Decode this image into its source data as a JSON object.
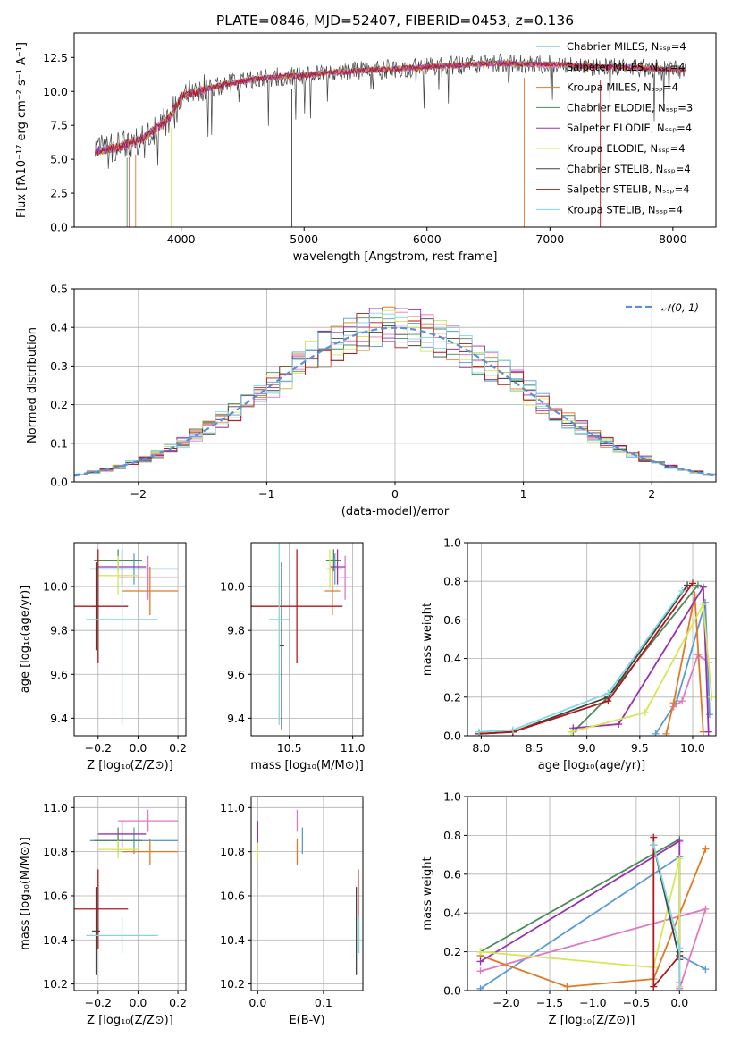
{
  "chart_data": [
    {
      "type": "line",
      "title": "PLATE=0846, MJD=52407, FIBERID=0453, z=0.136",
      "xlabel": "wavelength [Angstrom, rest frame]",
      "ylabel": "Flux [fλ10⁻¹⁷ erg cm⁻² s⁻¹ A⁻¹]",
      "xlim": [
        3130,
        8350
      ],
      "ylim": [
        0,
        14.3
      ],
      "xticks": [
        "4000",
        "5000",
        "6000",
        "7000",
        "8000"
      ],
      "yticks": [
        "0.0",
        "2.5",
        "5.0",
        "7.5",
        "10.0",
        "12.5"
      ],
      "legend_position": "right",
      "series": [
        {
          "name": "Chabrier MILES, N_SSP=4",
          "color": "#5b9bd5"
        },
        {
          "name": "Salpeter MILES, N_SSP=4",
          "color": "#e377c2"
        },
        {
          "name": "Kroupa MILES, N_SSP=4",
          "color": "#e07b24"
        },
        {
          "name": "Chabrier ELODIE, N_SSP=3",
          "color": "#4b8b5a"
        },
        {
          "name": "Salpeter ELODIE, N_SSP=4",
          "color": "#9b30b0"
        },
        {
          "name": "Kroupa ELODIE, N_SSP=4",
          "color": "#d4e857"
        },
        {
          "name": "Chabrier STELIB, N_SSP=4",
          "color": "#444444"
        },
        {
          "name": "Salpeter STELIB, N_SSP=4",
          "color": "#b01818"
        },
        {
          "name": "Kroupa STELIB, N_SSP=4",
          "color": "#7fd8e0"
        }
      ],
      "continuum": {
        "x": [
          3300,
          3500,
          3700,
          3900,
          4000,
          4200,
          4400,
          4600,
          4800,
          5000,
          5200,
          5400,
          5600,
          5800,
          6000,
          6200,
          6400,
          6600,
          6800,
          7000,
          7200,
          7400,
          7600,
          7800,
          8000,
          8100
        ],
        "y": [
          5.6,
          5.9,
          6.6,
          8.0,
          9.6,
          10.2,
          10.6,
          10.9,
          11.1,
          11.2,
          11.4,
          11.5,
          11.6,
          11.7,
          11.8,
          11.9,
          12.0,
          12.1,
          12.0,
          12.0,
          11.9,
          11.8,
          11.8,
          11.7,
          11.6,
          11.6
        ]
      }
    },
    {
      "type": "bar",
      "xlabel": "(data-model)/error",
      "ylabel": "Normed distribution",
      "xlim": [
        -2.5,
        2.5
      ],
      "ylim": [
        0,
        0.5
      ],
      "xticks": [
        "−2",
        "−1",
        "0",
        "1",
        "2"
      ],
      "yticks": [
        "0.0",
        "0.1",
        "0.2",
        "0.3",
        "0.4",
        "0.5"
      ],
      "legend": "𝒩(0, 1)",
      "legend_position": "top-right",
      "bin_width": 0.1,
      "bin_start": -2.5,
      "reference_curve": "normal pdf, mean 0, sigma 1"
    },
    {
      "type": "scatter",
      "xlabel": "Z [log₁₀(Z/Z⊙)]",
      "ylabel": "age  [log₁₀(age/yr)]",
      "xlim": [
        -0.32,
        0.24
      ],
      "ylim": [
        9.32,
        10.2
      ],
      "xticks": [
        "−0.2",
        "0.0",
        "0.2"
      ],
      "yticks": [
        "9.4",
        "9.6",
        "9.8",
        "10.0"
      ],
      "points": [
        {
          "x": -0.02,
          "y": 10.08,
          "xerr": 0.22,
          "yerr": 0.07
        },
        {
          "x": 0.05,
          "y": 10.04,
          "xerr": 0.15,
          "yerr": 0.1
        },
        {
          "x": 0.06,
          "y": 9.98,
          "xerr": 0.14,
          "yerr": 0.11
        },
        {
          "x": -0.1,
          "y": 10.12,
          "xerr": 0.12,
          "yerr": 0.05
        },
        {
          "x": -0.08,
          "y": 10.09,
          "xerr": 0.12,
          "yerr": 0.08
        },
        {
          "x": -0.1,
          "y": 10.05,
          "xerr": 0.1,
          "yerr": 0.09
        },
        {
          "x": -0.21,
          "y": 9.91,
          "xerr": 0.02,
          "yerr": 0.2
        },
        {
          "x": -0.2,
          "y": 9.91,
          "xerr": 0.15,
          "yerr": 0.26
        },
        {
          "x": -0.08,
          "y": 9.85,
          "xerr": 0.18,
          "yerr": 0.48
        }
      ]
    },
    {
      "type": "scatter",
      "xlabel": "mass [log₁₀(M/M⊙)]",
      "xlim": [
        10.2,
        11.08
      ],
      "ylim": [
        9.32,
        10.2
      ],
      "xticks": [
        "10.5",
        "11.0"
      ],
      "yticks": [
        "9.4",
        "9.6",
        "9.8",
        "10.0"
      ],
      "points": [
        {
          "x": 10.86,
          "y": 10.08,
          "xerr": 0.06,
          "yerr": 0.07
        },
        {
          "x": 10.94,
          "y": 10.04,
          "xerr": 0.05,
          "yerr": 0.1
        },
        {
          "x": 10.84,
          "y": 9.98,
          "xerr": 0.06,
          "yerr": 0.11
        },
        {
          "x": 10.85,
          "y": 10.12,
          "xerr": 0.06,
          "yerr": 0.05
        },
        {
          "x": 10.88,
          "y": 10.09,
          "xerr": 0.06,
          "yerr": 0.08
        },
        {
          "x": 10.82,
          "y": 10.08,
          "xerr": 0.04,
          "yerr": 0.09
        },
        {
          "x": 10.44,
          "y": 9.73,
          "xerr": 0.02,
          "yerr": 0.38
        },
        {
          "x": 10.56,
          "y": 9.91,
          "xerr": 0.36,
          "yerr": 0.26
        },
        {
          "x": 10.42,
          "y": 9.85,
          "xerr": 0.08,
          "yerr": 0.48
        }
      ]
    },
    {
      "type": "line",
      "xlabel": "age  [log₁₀(age/yr)]",
      "ylabel": "mass weight",
      "xlim": [
        7.87,
        10.22
      ],
      "ylim": [
        0,
        1
      ],
      "xticks": [
        "8.0",
        "8.5",
        "9.0",
        "9.5",
        "10.0"
      ],
      "yticks": [
        "0.0",
        "0.2",
        "0.4",
        "0.6",
        "0.8",
        "1.0"
      ],
      "grid": true,
      "series": [
        {
          "x": [
            9.65,
            9.85,
            10.12,
            10.16
          ],
          "y": [
            0.01,
            0.18,
            0.69,
            0.11
          ]
        },
        {
          "x": [
            9.82,
            9.9,
            10.05,
            10.15
          ],
          "y": [
            0.15,
            0.18,
            0.42,
            0.38
          ]
        },
        {
          "x": [
            9.75,
            9.82,
            10.02,
            10.1
          ],
          "y": [
            0.01,
            0.17,
            0.73,
            0.02
          ]
        },
        {
          "x": [
            8.87,
            9.2,
            10.05
          ],
          "y": [
            0.02,
            0.2,
            0.78
          ]
        },
        {
          "x": [
            8.87,
            9.3,
            10.1,
            10.15
          ],
          "y": [
            0.04,
            0.06,
            0.77,
            0.02
          ]
        },
        {
          "x": [
            8.85,
            9.55,
            10.1,
            10.18
          ],
          "y": [
            0.02,
            0.12,
            0.68,
            0.2
          ]
        },
        {
          "x": [
            7.98,
            8.3,
            9.2,
            9.95
          ],
          "y": [
            0.01,
            0.02,
            0.2,
            0.78
          ]
        },
        {
          "x": [
            7.98,
            8.3,
            9.2,
            10.0
          ],
          "y": [
            0.01,
            0.02,
            0.18,
            0.79
          ]
        },
        {
          "x": [
            7.98,
            8.3,
            9.2,
            9.9
          ],
          "y": [
            0.02,
            0.03,
            0.22,
            0.75
          ]
        }
      ]
    },
    {
      "type": "scatter",
      "xlabel": "Z [log₁₀(Z/Z⊙)]",
      "ylabel": "mass [log₁₀(M/M⊙)]",
      "xlim": [
        -0.32,
        0.24
      ],
      "ylim": [
        10.17,
        11.05
      ],
      "xticks": [
        "−0.2",
        "0.0",
        "0.2"
      ],
      "yticks": [
        "10.2",
        "10.4",
        "10.6",
        "10.8",
        "11.0"
      ],
      "points": [
        {
          "x": -0.02,
          "y": 10.85,
          "xerr": 0.22,
          "yerr": 0.06
        },
        {
          "x": 0.05,
          "y": 10.94,
          "xerr": 0.15,
          "yerr": 0.05
        },
        {
          "x": 0.06,
          "y": 10.8,
          "xerr": 0.14,
          "yerr": 0.06
        },
        {
          "x": -0.1,
          "y": 10.85,
          "xerr": 0.12,
          "yerr": 0.06
        },
        {
          "x": -0.08,
          "y": 10.88,
          "xerr": 0.12,
          "yerr": 0.06
        },
        {
          "x": -0.1,
          "y": 10.81,
          "xerr": 0.1,
          "yerr": 0.04
        },
        {
          "x": -0.21,
          "y": 10.44,
          "xerr": 0.02,
          "yerr": 0.2
        },
        {
          "x": -0.2,
          "y": 10.54,
          "xerr": 0.15,
          "yerr": 0.18
        },
        {
          "x": -0.08,
          "y": 10.42,
          "xerr": 0.18,
          "yerr": 0.08
        }
      ]
    },
    {
      "type": "scatter",
      "xlabel": "E(B-V)",
      "xlim": [
        -0.01,
        0.16
      ],
      "ylim": [
        10.17,
        11.05
      ],
      "xticks": [
        "0.0",
        "0.1"
      ],
      "yticks": [
        "10.2",
        "10.4",
        "10.6",
        "10.8",
        "11.0"
      ],
      "points": [
        {
          "x": 0.068,
          "y": 10.85,
          "xerr": 0,
          "yerr": 0.06
        },
        {
          "x": 0.06,
          "y": 10.94,
          "xerr": 0,
          "yerr": 0.05
        },
        {
          "x": 0.06,
          "y": 10.8,
          "xerr": 0,
          "yerr": 0.06
        },
        {
          "x": 0.0,
          "y": 10.85,
          "xerr": 0,
          "yerr": 0.06
        },
        {
          "x": 0.0,
          "y": 10.88,
          "xerr": 0,
          "yerr": 0.06
        },
        {
          "x": 0.0,
          "y": 10.8,
          "xerr": 0,
          "yerr": 0.04
        },
        {
          "x": 0.15,
          "y": 10.44,
          "xerr": 0,
          "yerr": 0.2
        },
        {
          "x": 0.153,
          "y": 10.54,
          "xerr": 0,
          "yerr": 0.18
        },
        {
          "x": 0.154,
          "y": 10.42,
          "xerr": 0,
          "yerr": 0.08
        }
      ]
    },
    {
      "type": "line",
      "xlabel": "Z [log₁₀(Z/Z⊙)]",
      "ylabel": "mass weight",
      "xlim": [
        -2.45,
        0.42
      ],
      "ylim": [
        0,
        1
      ],
      "xticks": [
        "−2.0",
        "−1.5",
        "−1.0",
        "−0.5",
        "0.0"
      ],
      "yticks": [
        "0.0",
        "0.2",
        "0.4",
        "0.6",
        "0.8",
        "1.0"
      ],
      "grid": true,
      "series": [
        {
          "x": [
            -2.3,
            0.0,
            0.0,
            0.3
          ],
          "y": [
            0.01,
            0.69,
            0.18,
            0.11
          ]
        },
        {
          "x": [
            -2.3,
            0.3,
            0.0,
            0.0
          ],
          "y": [
            0.1,
            0.42,
            0.01,
            0.02
          ]
        },
        {
          "x": [
            -2.3,
            -1.3,
            -0.3,
            0.3
          ],
          "y": [
            0.18,
            0.02,
            0.06,
            0.73
          ]
        },
        {
          "x": [
            -2.3,
            0.0
          ],
          "y": [
            0.2,
            0.78
          ]
        },
        {
          "x": [
            -2.3,
            0.0,
            0.0
          ],
          "y": [
            0.15,
            0.77,
            0.04
          ]
        },
        {
          "x": [
            -2.3,
            -0.3,
            0.0,
            0.0
          ],
          "y": [
            0.2,
            0.12,
            0.68,
            0.02
          ]
        },
        {
          "x": [
            -0.3,
            0.0,
            0.0
          ],
          "y": [
            0.75,
            0.16,
            0.2
          ]
        },
        {
          "x": [
            -0.3,
            -0.3,
            0.0
          ],
          "y": [
            0.79,
            0.02,
            0.18
          ]
        },
        {
          "x": [
            -0.3,
            0.0,
            0.0
          ],
          "y": [
            0.75,
            0.22,
            0.0
          ]
        }
      ]
    }
  ]
}
